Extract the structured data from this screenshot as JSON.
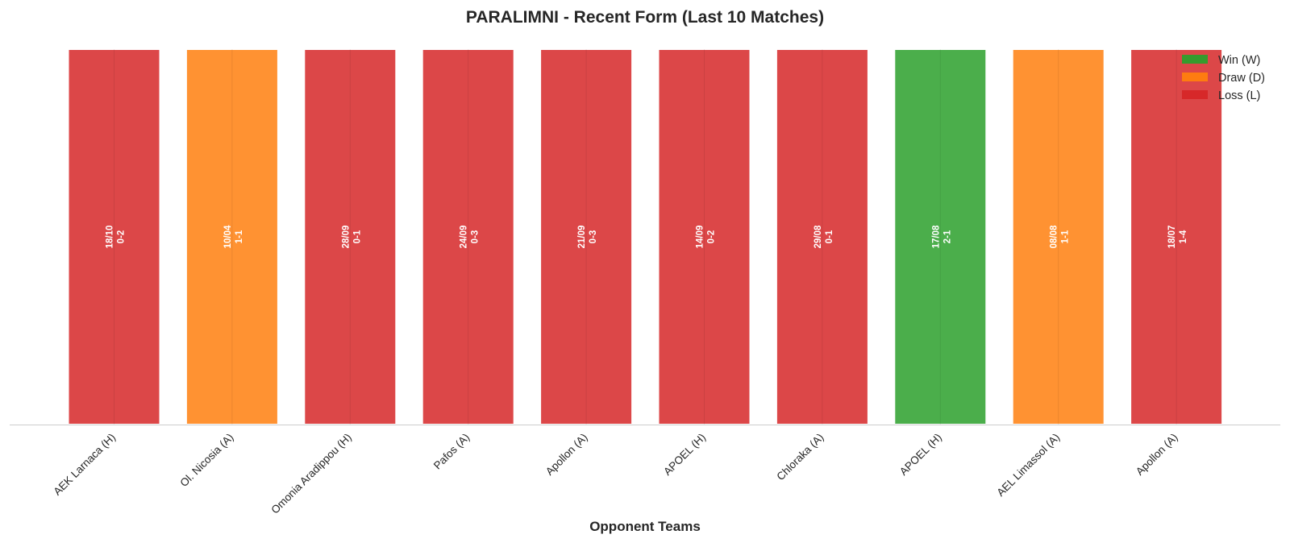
{
  "colors": {
    "W": "#2ca02c",
    "D": "#ff7f0e",
    "L": "#d62728",
    "axis": "#cccccc"
  },
  "chart_data": {
    "type": "bar",
    "title": "PARALIMNI - Recent Form (Last 10 Matches)",
    "xlabel": "Opponent Teams",
    "ylabel": "",
    "grid": false,
    "legend_position": "top-right",
    "ylim": [
      0,
      1
    ],
    "categories": [
      "AEK Larnaca (H)",
      "Ol. Nicosia (A)",
      "Omonia Aradippou (H)",
      "Pafos (A)",
      "Apollon (A)",
      "APOEL (H)",
      "Chloraka (A)",
      "APOEL (H)",
      "AEL Limassol (A)",
      "Apollon (A)"
    ],
    "values": [
      1,
      1,
      1,
      1,
      1,
      1,
      1,
      1,
      1,
      1
    ],
    "results": [
      "L",
      "D",
      "L",
      "L",
      "L",
      "L",
      "L",
      "W",
      "D",
      "L"
    ],
    "dates": [
      "18/10",
      "10/04",
      "28/09",
      "24/09",
      "21/09",
      "14/09",
      "29/08",
      "17/08",
      "08/08",
      "18/07"
    ],
    "scores": [
      "0-2",
      "1-1",
      "0-1",
      "0-3",
      "0-3",
      "0-2",
      "0-1",
      "2-1",
      "1-1",
      "1-4"
    ],
    "legend": [
      {
        "key": "W",
        "label": "Win (W)"
      },
      {
        "key": "D",
        "label": "Draw (D)"
      },
      {
        "key": "L",
        "label": "Loss (L)"
      }
    ]
  }
}
